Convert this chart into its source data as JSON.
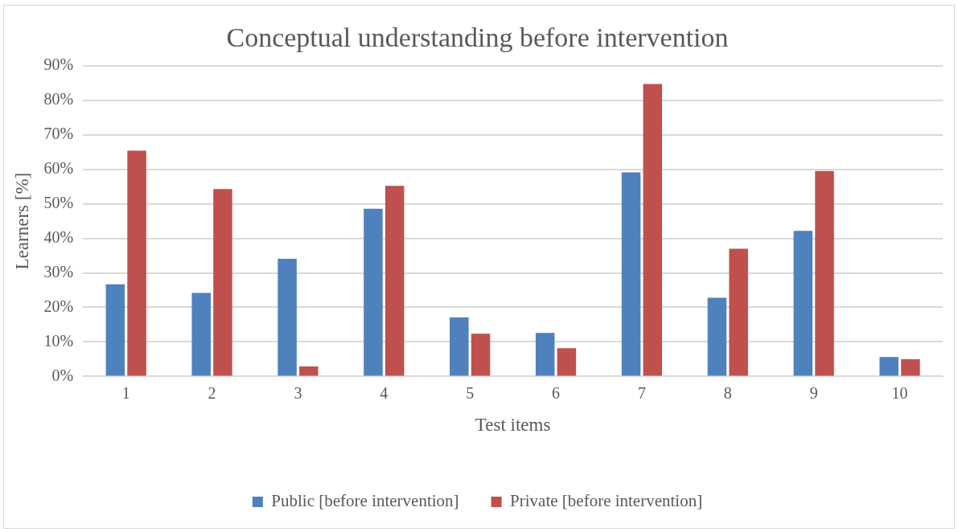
{
  "chart_data": {
    "type": "bar",
    "title": "Conceptual understanding before intervention",
    "xlabel": "Test items",
    "ylabel": "Learners [%]",
    "categories": [
      "1",
      "2",
      "3",
      "4",
      "5",
      "6",
      "7",
      "8",
      "9",
      "10"
    ],
    "series": [
      {
        "name": "Public [before intervention]",
        "color": "#4f81bd",
        "values": [
          26.7,
          24.2,
          34.1,
          48.6,
          17.1,
          12.6,
          59.1,
          22.8,
          42.2,
          5.6
        ]
      },
      {
        "name": "Private [before intervention]",
        "color": "#c0504d",
        "values": [
          65.4,
          54.3,
          2.9,
          55.2,
          12.4,
          8.2,
          84.7,
          37.0,
          59.5,
          5.0
        ]
      }
    ],
    "ylim": [
      0,
      90
    ],
    "yticks": [
      {
        "value": 0,
        "label": "0%"
      },
      {
        "value": 10,
        "label": "10%"
      },
      {
        "value": 20,
        "label": "20%"
      },
      {
        "value": 30,
        "label": "30%"
      },
      {
        "value": 40,
        "label": "40%"
      },
      {
        "value": 50,
        "label": "50%"
      },
      {
        "value": 60,
        "label": "60%"
      },
      {
        "value": 70,
        "label": "70%"
      },
      {
        "value": 80,
        "label": "80%"
      },
      {
        "value": 90,
        "label": "90%"
      }
    ],
    "grid": "y",
    "legend": "bottom"
  }
}
